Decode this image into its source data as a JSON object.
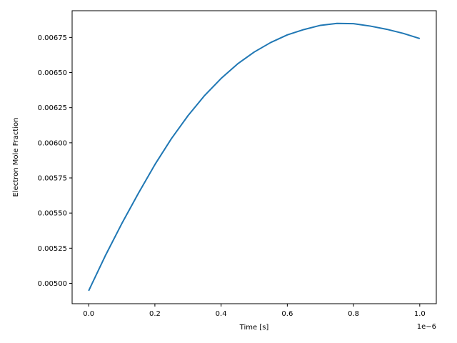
{
  "chart_data": {
    "type": "line",
    "title": "",
    "xlabel": "Time [s]",
    "ylabel": "Electron Mole Fraction",
    "x_offset_label": "1e−6",
    "xlim": [
      -0.05,
      1.05
    ],
    "ylim": [
      0.004855,
      0.00694
    ],
    "x_ticks": [
      0.0,
      0.2,
      0.4,
      0.6,
      0.8,
      1.0
    ],
    "x_tick_labels": [
      "0.0",
      "0.2",
      "0.4",
      "0.6",
      "0.8",
      "1.0"
    ],
    "y_ticks": [
      0.005,
      0.00525,
      0.0055,
      0.00575,
      0.006,
      0.00625,
      0.0065,
      0.00675
    ],
    "y_tick_labels": [
      "0.00500",
      "0.00525",
      "0.00550",
      "0.00575",
      "0.00600",
      "0.00625",
      "0.00650",
      "0.00675"
    ],
    "grid": false,
    "color": "#1f77b4",
    "series": [
      {
        "x": [
          0.0,
          0.05,
          0.1,
          0.15,
          0.2,
          0.25,
          0.3,
          0.35,
          0.4,
          0.45,
          0.5,
          0.55,
          0.6,
          0.65,
          0.7,
          0.75,
          0.8,
          0.85,
          0.9,
          0.95,
          1.0
        ],
        "values": [
          0.004947,
          0.005195,
          0.005425,
          0.00564,
          0.005845,
          0.00603,
          0.006193,
          0.006336,
          0.006458,
          0.006562,
          0.006646,
          0.006714,
          0.006768,
          0.006806,
          0.006836,
          0.00685,
          0.006848,
          0.006831,
          0.006808,
          0.006779,
          0.006742
        ]
      }
    ]
  }
}
